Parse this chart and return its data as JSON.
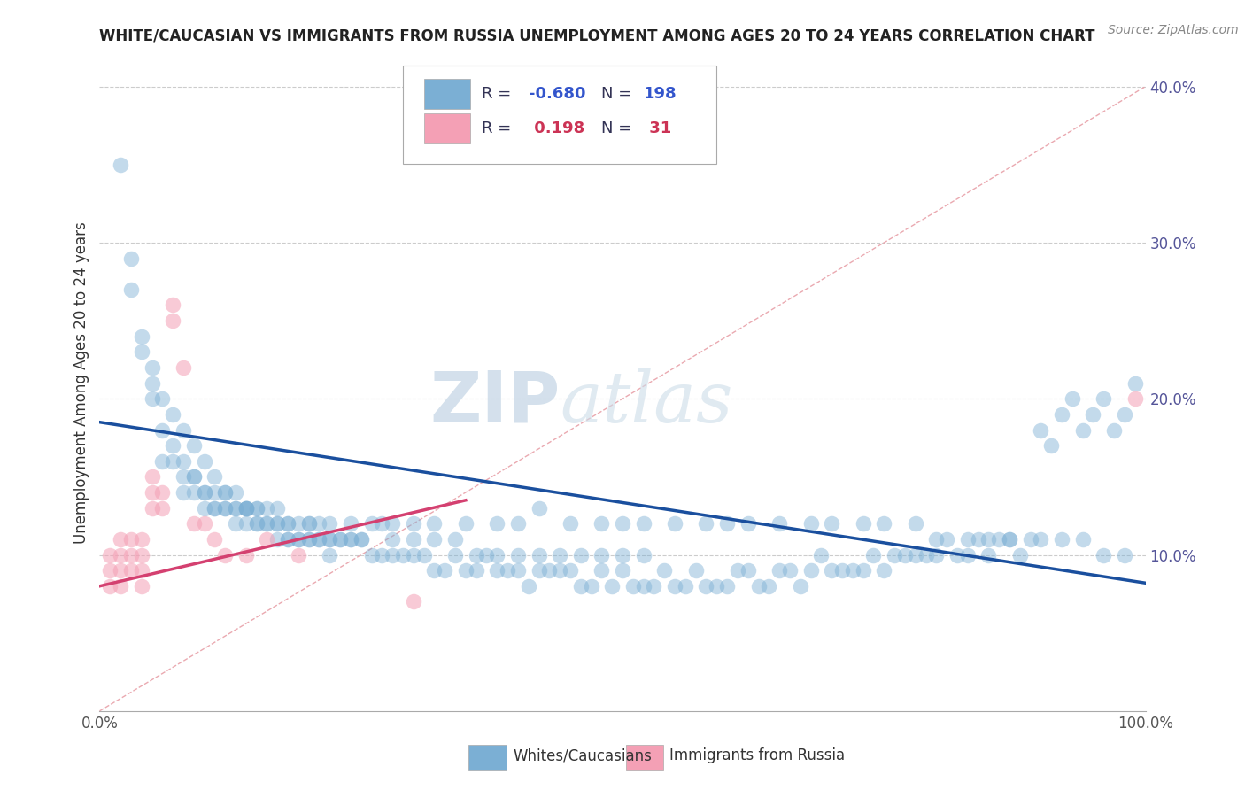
{
  "title": "WHITE/CAUCASIAN VS IMMIGRANTS FROM RUSSIA UNEMPLOYMENT AMONG AGES 20 TO 24 YEARS CORRELATION CHART",
  "source_text": "Source: ZipAtlas.com",
  "ylabel": "Unemployment Among Ages 20 to 24 years",
  "xmin": 0.0,
  "xmax": 1.0,
  "ymin": 0.0,
  "ymax": 0.42,
  "blue_color": "#7bafd4",
  "pink_color": "#f4a0b5",
  "blue_line_color": "#1a4f9e",
  "pink_line_color": "#d44070",
  "ref_line_color": "#e8a0a8",
  "grid_color": "#cccccc",
  "watermark_zip_color": "#b8cfe0",
  "watermark_atlas_color": "#c8d8e8",
  "legend_label_blue": "Whites/Caucasians",
  "legend_label_pink": "Immigrants from Russia",
  "blue_R": "-0.680",
  "blue_N": "198",
  "pink_R": "0.198",
  "pink_N": "31",
  "blue_line_x0": 0.0,
  "blue_line_y0": 0.185,
  "blue_line_x1": 1.0,
  "blue_line_y1": 0.082,
  "pink_line_x0": 0.0,
  "pink_line_y0": 0.08,
  "pink_line_x1": 0.35,
  "pink_line_y1": 0.135,
  "ref_line_x0": 0.0,
  "ref_line_y0": 0.0,
  "ref_line_x1": 1.0,
  "ref_line_y1": 0.4,
  "ytick_labels": [
    "10.0%",
    "20.0%",
    "30.0%",
    "40.0%"
  ],
  "ytick_values": [
    0.1,
    0.2,
    0.3,
    0.4
  ],
  "xtick_left_label": "0.0%",
  "xtick_right_label": "100.0%",
  "blue_scatter_x": [
    0.02,
    0.03,
    0.03,
    0.04,
    0.04,
    0.05,
    0.05,
    0.05,
    0.06,
    0.06,
    0.07,
    0.07,
    0.07,
    0.08,
    0.08,
    0.09,
    0.09,
    0.1,
    0.1,
    0.11,
    0.11,
    0.12,
    0.12,
    0.13,
    0.13,
    0.14,
    0.14,
    0.15,
    0.15,
    0.16,
    0.17,
    0.17,
    0.18,
    0.18,
    0.19,
    0.2,
    0.2,
    0.21,
    0.22,
    0.22,
    0.23,
    0.24,
    0.25,
    0.26,
    0.27,
    0.28,
    0.29,
    0.3,
    0.31,
    0.32,
    0.33,
    0.34,
    0.35,
    0.36,
    0.37,
    0.38,
    0.39,
    0.4,
    0.41,
    0.42,
    0.43,
    0.44,
    0.45,
    0.46,
    0.47,
    0.48,
    0.49,
    0.5,
    0.51,
    0.52,
    0.53,
    0.54,
    0.55,
    0.56,
    0.57,
    0.58,
    0.59,
    0.6,
    0.61,
    0.62,
    0.63,
    0.64,
    0.65,
    0.66,
    0.67,
    0.68,
    0.69,
    0.7,
    0.71,
    0.72,
    0.73,
    0.74,
    0.75,
    0.76,
    0.77,
    0.78,
    0.79,
    0.8,
    0.81,
    0.82,
    0.83,
    0.84,
    0.85,
    0.86,
    0.87,
    0.88,
    0.89,
    0.9,
    0.91,
    0.92,
    0.93,
    0.94,
    0.95,
    0.96,
    0.97,
    0.98,
    0.99,
    0.06,
    0.08,
    0.09,
    0.1,
    0.11,
    0.12,
    0.13,
    0.14,
    0.14,
    0.15,
    0.16,
    0.17,
    0.18,
    0.19,
    0.2,
    0.21,
    0.22,
    0.23,
    0.24,
    0.25,
    0.27,
    0.28,
    0.3,
    0.32,
    0.35,
    0.38,
    0.4,
    0.42,
    0.45,
    0.48,
    0.5,
    0.52,
    0.55,
    0.58,
    0.6,
    0.62,
    0.65,
    0.68,
    0.7,
    0.73,
    0.75,
    0.78,
    0.8,
    0.83,
    0.85,
    0.87,
    0.9,
    0.92,
    0.94,
    0.96,
    0.98,
    0.08,
    0.09,
    0.1,
    0.11,
    0.12,
    0.13,
    0.14,
    0.15,
    0.16,
    0.17,
    0.18,
    0.19,
    0.2,
    0.21,
    0.22,
    0.24,
    0.26,
    0.28,
    0.3,
    0.32,
    0.34,
    0.36,
    0.38,
    0.4,
    0.42,
    0.44,
    0.46,
    0.48,
    0.5,
    0.52
  ],
  "blue_scatter_y": [
    0.35,
    0.27,
    0.29,
    0.24,
    0.23,
    0.22,
    0.21,
    0.2,
    0.2,
    0.18,
    0.19,
    0.17,
    0.16,
    0.18,
    0.16,
    0.17,
    0.15,
    0.16,
    0.14,
    0.15,
    0.13,
    0.14,
    0.13,
    0.14,
    0.12,
    0.13,
    0.12,
    0.13,
    0.12,
    0.12,
    0.12,
    0.11,
    0.12,
    0.11,
    0.11,
    0.12,
    0.11,
    0.11,
    0.11,
    0.1,
    0.11,
    0.11,
    0.11,
    0.1,
    0.1,
    0.1,
    0.1,
    0.1,
    0.1,
    0.09,
    0.09,
    0.1,
    0.09,
    0.09,
    0.1,
    0.09,
    0.09,
    0.09,
    0.08,
    0.09,
    0.09,
    0.09,
    0.09,
    0.08,
    0.08,
    0.09,
    0.08,
    0.09,
    0.08,
    0.08,
    0.08,
    0.09,
    0.08,
    0.08,
    0.09,
    0.08,
    0.08,
    0.08,
    0.09,
    0.09,
    0.08,
    0.08,
    0.09,
    0.09,
    0.08,
    0.09,
    0.1,
    0.09,
    0.09,
    0.09,
    0.09,
    0.1,
    0.09,
    0.1,
    0.1,
    0.1,
    0.1,
    0.1,
    0.11,
    0.1,
    0.1,
    0.11,
    0.1,
    0.11,
    0.11,
    0.1,
    0.11,
    0.18,
    0.17,
    0.19,
    0.2,
    0.18,
    0.19,
    0.2,
    0.18,
    0.19,
    0.21,
    0.16,
    0.15,
    0.15,
    0.14,
    0.14,
    0.14,
    0.13,
    0.13,
    0.13,
    0.12,
    0.12,
    0.12,
    0.11,
    0.11,
    0.11,
    0.11,
    0.11,
    0.11,
    0.11,
    0.11,
    0.12,
    0.12,
    0.12,
    0.12,
    0.12,
    0.12,
    0.12,
    0.13,
    0.12,
    0.12,
    0.12,
    0.12,
    0.12,
    0.12,
    0.12,
    0.12,
    0.12,
    0.12,
    0.12,
    0.12,
    0.12,
    0.12,
    0.11,
    0.11,
    0.11,
    0.11,
    0.11,
    0.11,
    0.11,
    0.1,
    0.1,
    0.14,
    0.14,
    0.13,
    0.13,
    0.13,
    0.13,
    0.13,
    0.13,
    0.13,
    0.13,
    0.12,
    0.12,
    0.12,
    0.12,
    0.12,
    0.12,
    0.12,
    0.11,
    0.11,
    0.11,
    0.11,
    0.1,
    0.1,
    0.1,
    0.1,
    0.1,
    0.1,
    0.1,
    0.1,
    0.1
  ],
  "pink_scatter_x": [
    0.01,
    0.01,
    0.01,
    0.02,
    0.02,
    0.02,
    0.02,
    0.03,
    0.03,
    0.03,
    0.04,
    0.04,
    0.04,
    0.04,
    0.05,
    0.05,
    0.05,
    0.06,
    0.06,
    0.07,
    0.07,
    0.08,
    0.09,
    0.1,
    0.11,
    0.12,
    0.14,
    0.16,
    0.19,
    0.3,
    0.99
  ],
  "pink_scatter_y": [
    0.08,
    0.09,
    0.1,
    0.08,
    0.09,
    0.1,
    0.11,
    0.09,
    0.1,
    0.11,
    0.08,
    0.09,
    0.1,
    0.11,
    0.13,
    0.14,
    0.15,
    0.13,
    0.14,
    0.25,
    0.26,
    0.22,
    0.12,
    0.12,
    0.11,
    0.1,
    0.1,
    0.11,
    0.1,
    0.07,
    0.2
  ]
}
